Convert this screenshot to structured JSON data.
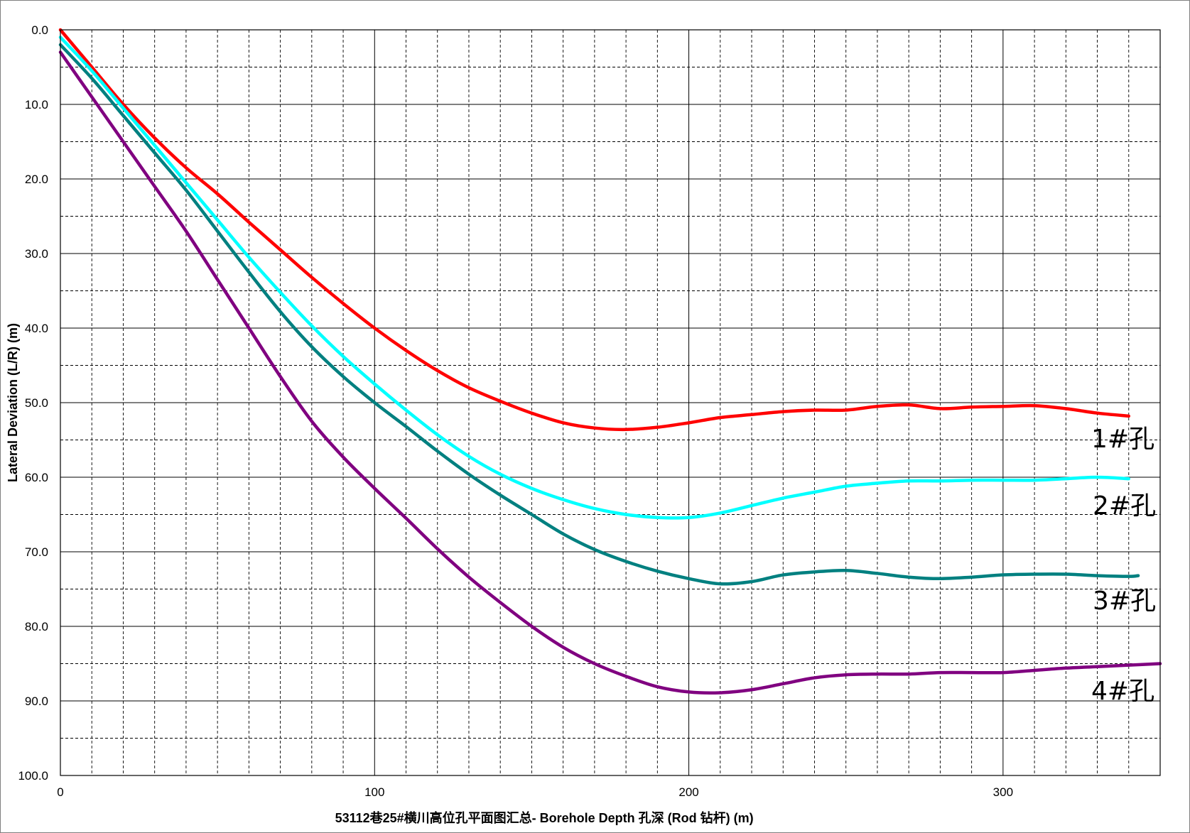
{
  "chart_data": {
    "type": "line",
    "title": "",
    "xlabel": "53112巷25#横川高位孔平面图汇总- Borehole Depth 孔深 (Rod 钻杆) (m)",
    "ylabel": "Lateral Deviation (L/R) (m)",
    "xlim": [
      0,
      350
    ],
    "ylim": [
      0,
      100
    ],
    "y_inverted": true,
    "x_ticks": [
      "0",
      "100",
      "200",
      "300"
    ],
    "y_ticks": [
      "0.0",
      "10.0",
      "20.0",
      "30.0",
      "40.0",
      "50.0",
      "60.0",
      "70.0",
      "80.0",
      "90.0",
      "100.0"
    ],
    "grid": "on",
    "legend": "none",
    "series": [
      {
        "name": "1#孔",
        "color": "#ff0000",
        "x": [
          0,
          10,
          20,
          30,
          40,
          50,
          60,
          70,
          80,
          90,
          100,
          110,
          120,
          130,
          140,
          150,
          160,
          170,
          180,
          190,
          200,
          210,
          220,
          230,
          240,
          250,
          260,
          270,
          280,
          290,
          300,
          310,
          320,
          330,
          340
        ],
        "y": [
          0,
          5,
          10,
          14.5,
          18.5,
          22,
          25.8,
          29.5,
          33.2,
          36.7,
          40,
          43,
          45.7,
          48,
          49.8,
          51.4,
          52.7,
          53.4,
          53.6,
          53.3,
          52.7,
          52,
          51.6,
          51.2,
          51,
          51,
          50.5,
          50.3,
          50.8,
          50.6,
          50.5,
          50.4,
          50.8,
          51.4,
          51.8
        ]
      },
      {
        "name": "2#孔",
        "color": "#00ffff",
        "x": [
          0,
          10,
          20,
          30,
          40,
          50,
          60,
          70,
          80,
          90,
          100,
          110,
          120,
          130,
          140,
          150,
          160,
          170,
          180,
          190,
          200,
          210,
          220,
          230,
          240,
          250,
          260,
          270,
          280,
          290,
          300,
          310,
          320,
          330,
          340
        ],
        "y": [
          1,
          5.5,
          10.5,
          15.5,
          20.5,
          25.5,
          30.5,
          35.2,
          39.7,
          43.8,
          47.5,
          51,
          54.3,
          57.2,
          59.6,
          61.5,
          63,
          64.2,
          65,
          65.4,
          65.4,
          64.8,
          63.8,
          62.8,
          62,
          61.2,
          60.8,
          60.5,
          60.5,
          60.4,
          60.4,
          60.4,
          60.2,
          60,
          60.2
        ]
      },
      {
        "name": "3#孔",
        "color": "#008080",
        "x": [
          0,
          10,
          20,
          30,
          40,
          50,
          60,
          70,
          80,
          90,
          100,
          110,
          120,
          130,
          140,
          150,
          160,
          170,
          180,
          190,
          200,
          210,
          220,
          230,
          240,
          250,
          260,
          270,
          280,
          290,
          300,
          310,
          320,
          330,
          340,
          343
        ],
        "y": [
          2,
          6.5,
          11.5,
          16.5,
          21.5,
          27,
          32.5,
          37.8,
          42.5,
          46.5,
          50,
          53.2,
          56.5,
          59.6,
          62.4,
          65,
          67.6,
          69.7,
          71.3,
          72.6,
          73.6,
          74.3,
          74,
          73.1,
          72.7,
          72.5,
          72.9,
          73.4,
          73.6,
          73.4,
          73.1,
          73,
          73,
          73.2,
          73.3,
          73.2
        ]
      },
      {
        "name": "4#孔",
        "color": "#800080",
        "x": [
          0,
          10,
          20,
          30,
          40,
          50,
          60,
          70,
          80,
          90,
          100,
          110,
          120,
          130,
          140,
          150,
          160,
          170,
          180,
          190,
          200,
          210,
          220,
          230,
          240,
          250,
          260,
          270,
          280,
          290,
          300,
          310,
          320,
          330,
          340,
          350
        ],
        "y": [
          3,
          9,
          15,
          21,
          27,
          33.5,
          40,
          46.5,
          52.5,
          57.3,
          61.5,
          65.5,
          69.6,
          73.4,
          76.8,
          80,
          82.8,
          85,
          86.7,
          88.1,
          88.8,
          88.9,
          88.5,
          87.7,
          86.9,
          86.5,
          86.4,
          86.4,
          86.2,
          86.2,
          86.2,
          85.9,
          85.6,
          85.4,
          85.2,
          85
        ]
      }
    ],
    "annotations": [
      "1#孔",
      "2#孔",
      "3#孔",
      "4#孔"
    ]
  }
}
